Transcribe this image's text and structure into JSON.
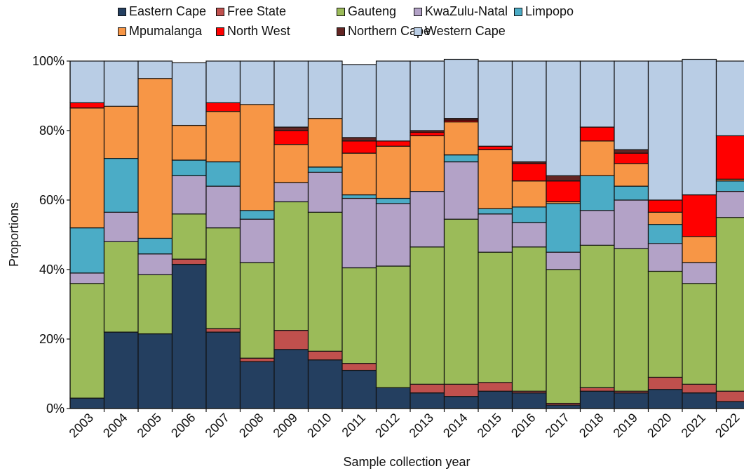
{
  "chart_data": {
    "type": "bar",
    "stacked": true,
    "normalized": true,
    "xlabel": "Sample collection year",
    "ylabel": "Proportions",
    "ylim": [
      0,
      100
    ],
    "yticks": [
      "0%",
      "20%",
      "40%",
      "60%",
      "80%",
      "100%"
    ],
    "legend_position": "top",
    "categories": [
      "2003",
      "2004",
      "2005",
      "2006",
      "2007",
      "2008",
      "2009",
      "2010",
      "2011",
      "2012",
      "2013",
      "2014",
      "2015",
      "2016",
      "2017",
      "2018",
      "2019",
      "2020",
      "2021",
      "2022"
    ],
    "series": [
      {
        "name": "Eastern Cape",
        "color": "#243F60",
        "values": [
          3,
          22,
          21.5,
          41.5,
          22,
          13.5,
          17,
          14,
          11,
          6,
          4.5,
          3.5,
          5,
          4.5,
          1,
          5,
          4.5,
          5.5,
          4.5,
          2
        ]
      },
      {
        "name": "Free State",
        "color": "#C0504D",
        "values": [
          0,
          0,
          0,
          1.5,
          1,
          1,
          5.5,
          2.5,
          2,
          0,
          2.5,
          3.5,
          2.5,
          0.5,
          0.5,
          1,
          0.5,
          3.5,
          2.5,
          3
        ]
      },
      {
        "name": "Gauteng",
        "color": "#9BBB59",
        "values": [
          33,
          26,
          17,
          13,
          29,
          27.5,
          37,
          40,
          27.5,
          35,
          39.5,
          47.5,
          37.5,
          41.5,
          38.5,
          41,
          41,
          30.5,
          29,
          50
        ]
      },
      {
        "name": "KwaZulu-Natal",
        "color": "#B3A2C7",
        "values": [
          3,
          8.5,
          6,
          11,
          12,
          12.5,
          5.5,
          11.5,
          20,
          18,
          16,
          16.5,
          11,
          7,
          5,
          10,
          14,
          8,
          6,
          7.5
        ]
      },
      {
        "name": "Limpopo",
        "color": "#4BACC6",
        "values": [
          13,
          15.5,
          4.5,
          4.5,
          7,
          2.5,
          0,
          1.5,
          1,
          1.5,
          0,
          2,
          1.5,
          4.5,
          14,
          10,
          4,
          5.5,
          0,
          3
        ]
      },
      {
        "name": "Mpumalanga",
        "color": "#F79646",
        "values": [
          34.5,
          15,
          46,
          10,
          14.5,
          30.5,
          11,
          14,
          12,
          15,
          16,
          9.5,
          17,
          7.5,
          0.5,
          10,
          6.5,
          3.5,
          7.5,
          0.5
        ]
      },
      {
        "name": "North West",
        "color": "#FF0000",
        "values": [
          1.5,
          0,
          0,
          0,
          2.5,
          0,
          4,
          0,
          3.5,
          1.5,
          1,
          0.5,
          1,
          5,
          6,
          4,
          3,
          3.5,
          12,
          12.5
        ]
      },
      {
        "name": "Northern Cape",
        "color": "#632523",
        "values": [
          0,
          0,
          0,
          0,
          0,
          0,
          1,
          0,
          1,
          0,
          0.5,
          0.5,
          0,
          0.5,
          1.5,
          0,
          1,
          0,
          0,
          0
        ]
      },
      {
        "name": "Western Cape",
        "color": "#B9CDE5",
        "values": [
          12,
          13,
          5,
          18,
          12,
          12.5,
          19,
          16.5,
          21,
          23,
          20,
          17,
          24.5,
          29,
          33,
          19,
          25.5,
          40,
          39,
          21.5
        ]
      }
    ]
  }
}
